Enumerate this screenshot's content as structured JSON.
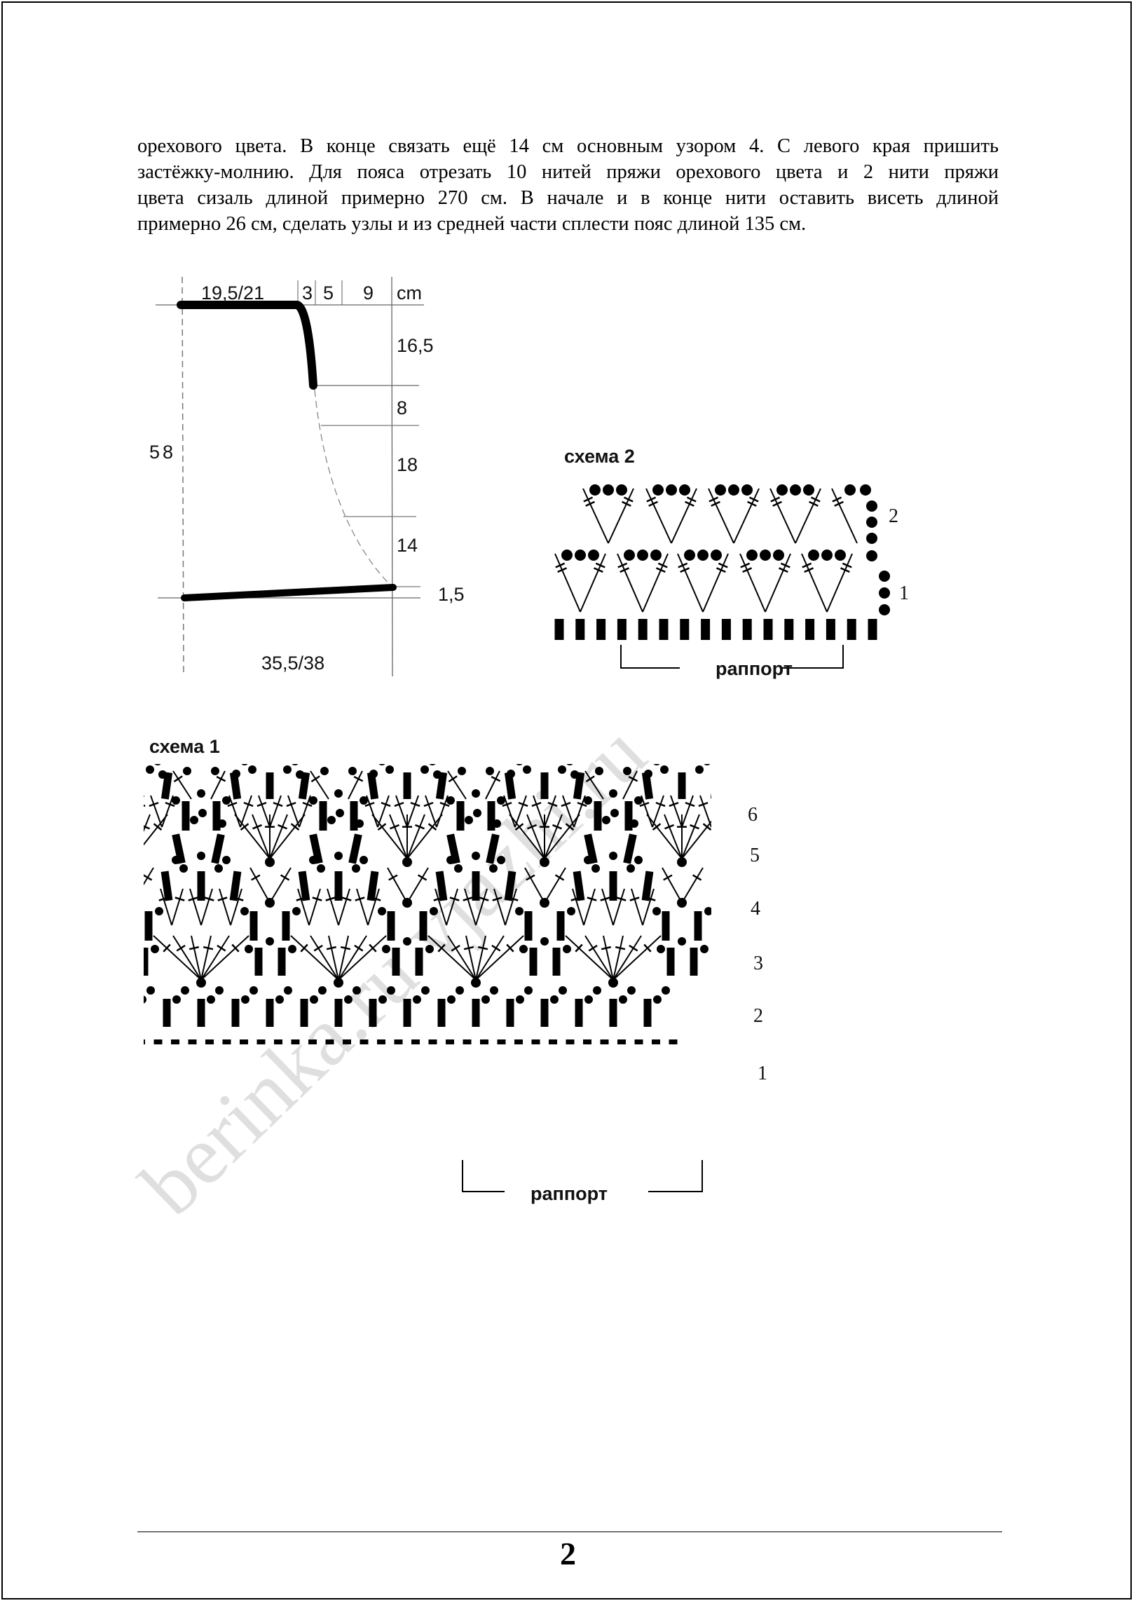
{
  "body_text": {
    "lines": [
      "орехового цвета. В конце связать ещё 14 см основным узором 4. С левого края пришить",
      "застёжку-молнию. Для пояса отрезать 10 нитей пряжи орехового цвета и 2 нити пряжи",
      "цвета сизаль длиной примерно 270 см. В начале и в конце нити оставить висеть длиной",
      "примерно 26 см, сделать узлы и из средней части сплести пояс длиной 135 см."
    ]
  },
  "schematic": {
    "top_width": "19,5/21",
    "top_segments": [
      "3",
      "5",
      "9"
    ],
    "unit": "cm",
    "right_heights": [
      "16,5",
      "8",
      "18",
      "14"
    ],
    "hem_rise": "1,5",
    "total_height": "58",
    "bottom_width": "35,5/38"
  },
  "scheme2": {
    "title": "схема 2",
    "row_labels": [
      "2",
      "1"
    ],
    "repeat_label": "раппорт"
  },
  "scheme1": {
    "title": "схема 1",
    "row_labels": [
      "6",
      "5",
      "4",
      "3",
      "2",
      "1"
    ],
    "repeat_label": "раппорт"
  },
  "watermark": "berinka.ru vjazhi.ru",
  "footer": {
    "page_number": "2"
  }
}
